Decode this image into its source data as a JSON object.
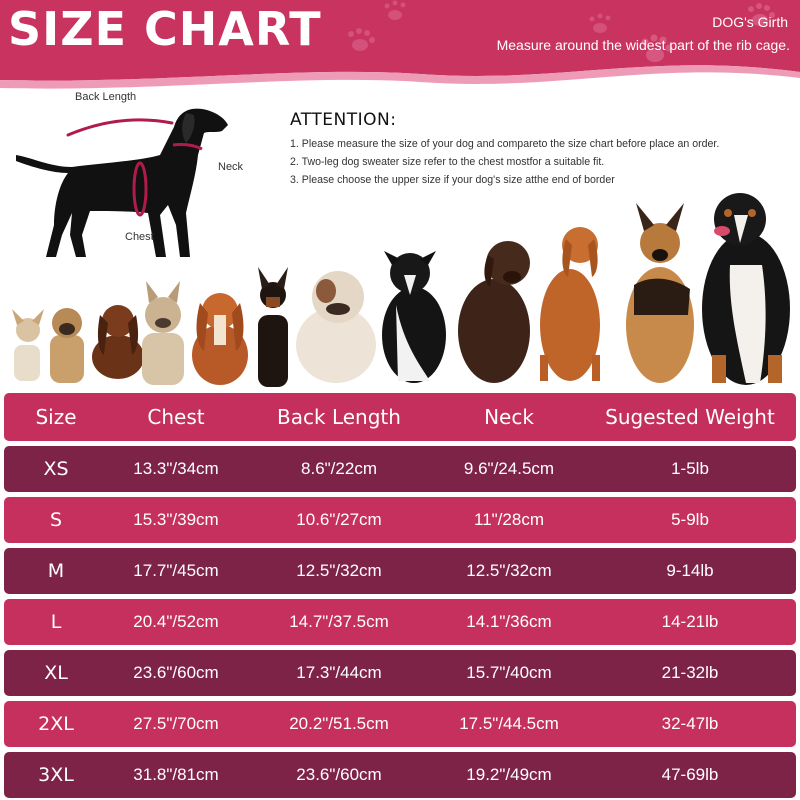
{
  "header": {
    "title": "SIZE CHART",
    "girth_title": "DOG's Girth",
    "girth_description": "Measure around the widest part of the rib cage."
  },
  "diagram": {
    "labels": {
      "back_length": "Back Length",
      "neck": "Neck",
      "chest": "Chest"
    }
  },
  "attention": {
    "title": "ATTENTION:",
    "items": [
      "1. Please measure the size of your dog and compareto the size chart before place an order.",
      "2. Two-leg dog sweater size refer to the chest mostfor a suitable fit.",
      "3. Please choose the upper size if your dog's size atthe end of border"
    ]
  },
  "table": {
    "headers": [
      "Size",
      "Chest",
      "Back Length",
      "Neck",
      "Sugested Weight"
    ],
    "rows": [
      {
        "size": "XS",
        "chest": "13.3\"/34cm",
        "back_length": "8.6\"/22cm",
        "neck": "9.6\"/24.5cm",
        "weight": "1-5lb"
      },
      {
        "size": "S",
        "chest": "15.3\"/39cm",
        "back_length": "10.6\"/27cm",
        "neck": "11\"/28cm",
        "weight": "5-9lb"
      },
      {
        "size": "M",
        "chest": "17.7\"/45cm",
        "back_length": "12.5\"/32cm",
        "neck": "12.5\"/32cm",
        "weight": "9-14lb"
      },
      {
        "size": "L",
        "chest": "20.4\"/52cm",
        "back_length": "14.7\"/37.5cm",
        "neck": "14.1\"/36cm",
        "weight": "14-21lb"
      },
      {
        "size": "XL",
        "chest": "23.6\"/60cm",
        "back_length": "17.3\"/44cm",
        "neck": "15.7\"/40cm",
        "weight": "21-32lb"
      },
      {
        "size": "2XL",
        "chest": "27.5\"/70cm",
        "back_length": "20.2\"/51.5cm",
        "neck": "17.5\"/44.5cm",
        "weight": "32-47lb"
      },
      {
        "size": "3XL",
        "chest": "31.8\"/81cm",
        "back_length": "23.6\"/60cm",
        "neck": "19.2\"/49cm",
        "weight": "47-69lb"
      }
    ]
  },
  "colors": {
    "header_pink": "#c8335f",
    "row_dark": "#7e2348",
    "row_pink": "#c6305e",
    "measure_line": "#b01c4a"
  },
  "icons": [
    "paw-print-icon",
    "dog-silhouette-icon"
  ]
}
